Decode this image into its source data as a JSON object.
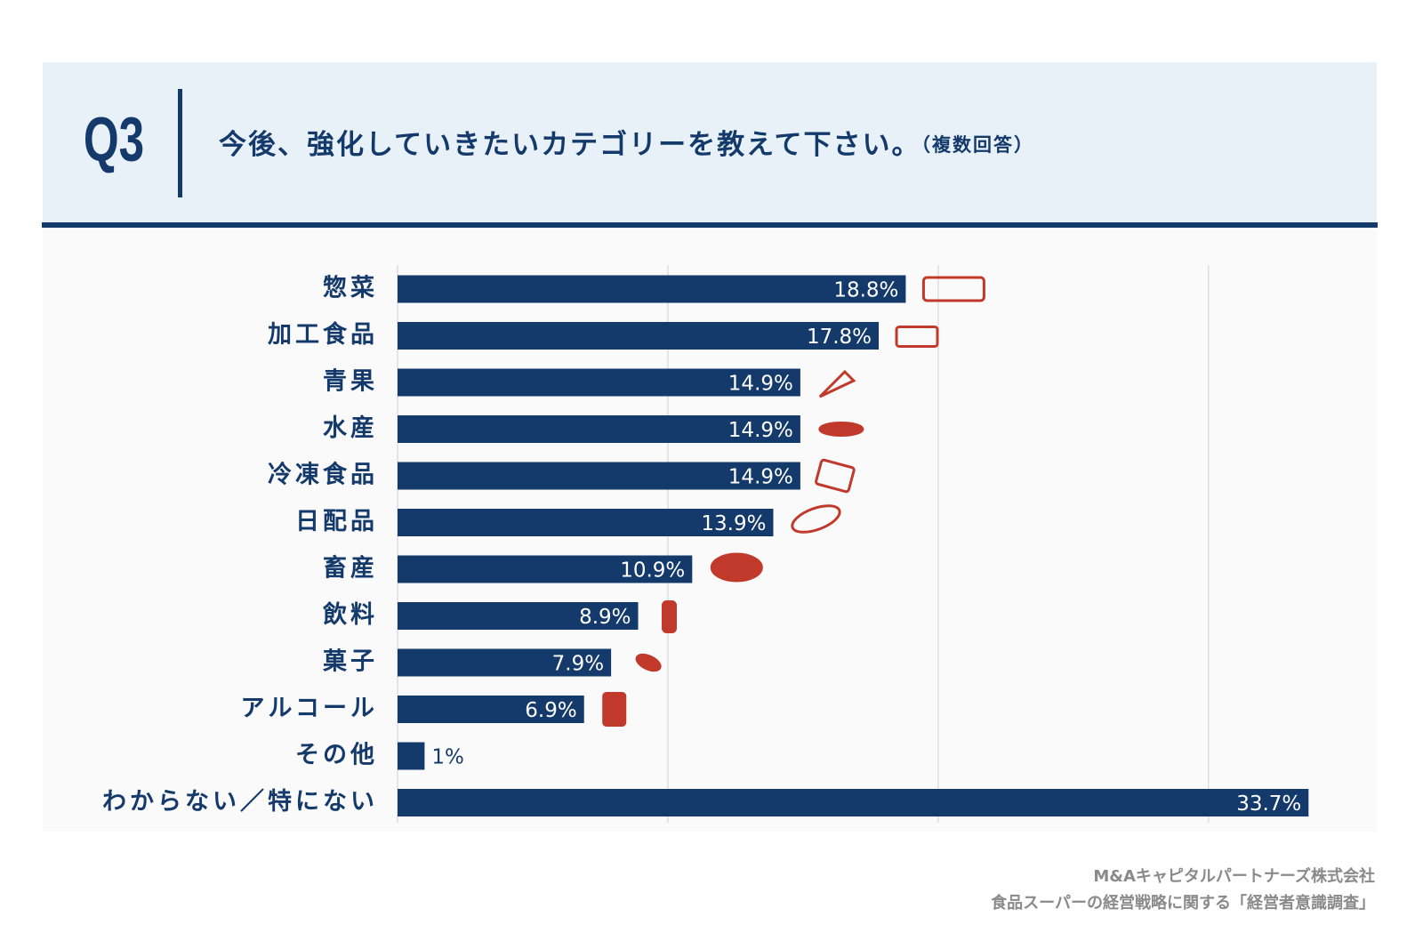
{
  "header": {
    "label": "Q3",
    "question": "今後、強化していきたいカテゴリーを教えて下さい。",
    "note": "（複数回答）"
  },
  "chart_data": {
    "type": "bar",
    "orientation": "horizontal",
    "categories": [
      "惣菜",
      "加工食品",
      "青果",
      "水産",
      "冷凍食品",
      "日配品",
      "畜産",
      "飲料",
      "菓子",
      "アルコール",
      "その他",
      "わからない／特にない"
    ],
    "values": [
      18.8,
      17.8,
      14.9,
      14.9,
      14.9,
      13.9,
      10.9,
      8.9,
      7.9,
      6.9,
      1,
      33.7
    ],
    "value_labels": [
      "18.8%",
      "17.8%",
      "14.9%",
      "14.9%",
      "14.9%",
      "13.9%",
      "10.9%",
      "8.9%",
      "7.9%",
      "6.9%",
      "1%",
      "33.7%"
    ],
    "color": "#143a6b",
    "xlim": [
      0,
      35.5
    ],
    "gridlines": [
      0,
      10,
      20,
      30
    ],
    "grid": true
  },
  "footer": {
    "company": "M&Aキャピタルパートナーズ株式会社",
    "source": "食品スーパーの経営戦略に関する「経営者意識調査」"
  }
}
